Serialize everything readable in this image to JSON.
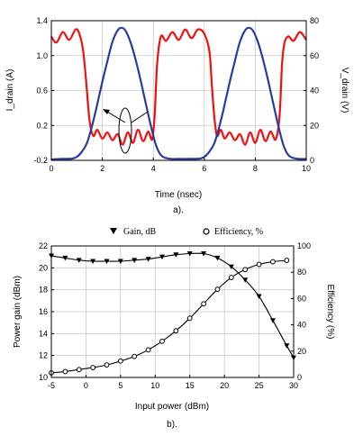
{
  "chart_data": [
    {
      "id": "a",
      "type": "line",
      "caption": "a).",
      "xlabel": "Time (nsec)",
      "ylabel_left": "I_drain (A)",
      "ylabel_right": "V_drain (V)",
      "xlim": [
        0,
        10
      ],
      "ylim_left": [
        -0.2,
        1.4
      ],
      "ylim_right": [
        0,
        80
      ],
      "xticks": [
        "0",
        "2",
        "4",
        "6",
        "8",
        "10"
      ],
      "yticks_left": [
        "-0.2",
        "0.2",
        "0.6",
        "1.0",
        "1.4"
      ],
      "yticks_right": [
        "0",
        "20",
        "40",
        "60",
        "80"
      ],
      "grid": true,
      "colors": {
        "current": "#ee1111",
        "voltage": "#2a3c9c"
      },
      "series": [
        {
          "axis": "left",
          "x": [
            0,
            0.2,
            0.45,
            0.7,
            0.95,
            1.1,
            1.25,
            1.38,
            1.5,
            1.65,
            1.8,
            2.0,
            2.2,
            2.4,
            2.6,
            2.8,
            3.0,
            3.2,
            3.4,
            3.6,
            3.8,
            3.95,
            4.05,
            4.15,
            4.3,
            4.5,
            4.75,
            5.0,
            5.25,
            5.5,
            5.75,
            6.0,
            6.2,
            6.3,
            6.4,
            6.5,
            6.65,
            6.8,
            7.0,
            7.2,
            7.4,
            7.6,
            7.8,
            8.0,
            8.2,
            8.4,
            8.6,
            8.8,
            8.95,
            9.05,
            9.15,
            9.3,
            9.5,
            9.75,
            10.0
          ],
          "y": [
            1.22,
            1.15,
            1.27,
            1.18,
            1.3,
            1.25,
            1.05,
            0.65,
            0.25,
            0.08,
            0.15,
            0.05,
            0.12,
            0.03,
            0.1,
            -0.02,
            0.12,
            0.0,
            0.15,
            0.02,
            0.13,
            0.04,
            0.3,
            0.9,
            1.22,
            1.17,
            1.27,
            1.18,
            1.3,
            1.2,
            1.3,
            1.25,
            1.05,
            0.65,
            0.28,
            0.08,
            0.15,
            0.05,
            0.12,
            0.03,
            0.1,
            -0.02,
            0.12,
            0.0,
            0.15,
            0.02,
            0.13,
            0.04,
            0.3,
            0.9,
            1.15,
            1.22,
            1.17,
            1.27,
            1.18
          ]
        },
        {
          "axis": "right",
          "x": [
            0,
            0.4,
            0.8,
            1.0,
            1.2,
            1.4,
            1.6,
            1.8,
            2.0,
            2.2,
            2.4,
            2.6,
            2.75,
            2.9,
            3.1,
            3.3,
            3.5,
            3.7,
            3.9,
            4.1,
            4.3,
            4.6,
            5.0,
            5.4,
            5.8,
            6.0,
            6.2,
            6.4,
            6.6,
            6.8,
            7.0,
            7.2,
            7.4,
            7.6,
            7.75,
            7.9,
            8.1,
            8.3,
            8.5,
            8.7,
            8.9,
            9.1,
            9.3,
            9.6,
            10.0
          ],
          "y": [
            0.5,
            0.8,
            1.0,
            2.0,
            5.0,
            10.0,
            20.0,
            32.0,
            45.0,
            57.0,
            68.0,
            74.5,
            76.0,
            74.5,
            68.0,
            58.0,
            46.0,
            33.0,
            20.0,
            9.0,
            3.0,
            1.0,
            0.8,
            0.8,
            1.0,
            2.0,
            5.0,
            10.0,
            20.0,
            32.0,
            45.0,
            57.0,
            68.0,
            74.5,
            76.0,
            74.5,
            68.0,
            58.0,
            46.0,
            33.0,
            20.0,
            9.0,
            3.0,
            1.0,
            0.8
          ]
        }
      ]
    },
    {
      "id": "b",
      "type": "line",
      "caption": "b).",
      "xlabel": "Input power (dBm)",
      "ylabel_left": "Power gain (dBm)",
      "ylabel_right": "Efficiency (%)",
      "xlim": [
        -5,
        30
      ],
      "ylim_left": [
        10,
        22
      ],
      "ylim_right": [
        0,
        100
      ],
      "xticks": [
        "-5",
        "0",
        "5",
        "10",
        "15",
        "20",
        "25",
        "30"
      ],
      "yticks_left": [
        "10",
        "12",
        "14",
        "16",
        "18",
        "20",
        "22"
      ],
      "yticks_right": [
        "0",
        "20",
        "40",
        "60",
        "80",
        "100"
      ],
      "grid": true,
      "legend_position": "top",
      "legend": [
        {
          "marker": "triangle-down",
          "label": "Gain, dB"
        },
        {
          "marker": "circle",
          "label": "Efficiency, %"
        }
      ],
      "series": [
        {
          "name": "Gain, dB",
          "axis": "left",
          "marker": "triangle-down",
          "x": [
            -5,
            -3,
            -1,
            1,
            3,
            5,
            7,
            9,
            11,
            13,
            15,
            17,
            19,
            21,
            23,
            25,
            27,
            29,
            30
          ],
          "y": [
            21.1,
            20.9,
            20.7,
            20.6,
            20.6,
            20.6,
            20.7,
            20.8,
            21.0,
            21.2,
            21.3,
            21.3,
            20.9,
            20.1,
            18.9,
            17.4,
            15.2,
            12.9,
            11.8
          ]
        },
        {
          "name": "Efficiency, %",
          "axis": "right",
          "marker": "circle",
          "x": [
            -5,
            -3,
            -1,
            1,
            3,
            5,
            7,
            9,
            11,
            13,
            15,
            17,
            19,
            21,
            23,
            25,
            27,
            29
          ],
          "y": [
            3.5,
            4.5,
            6.0,
            7.5,
            9.5,
            12.5,
            16.0,
            21.0,
            27.5,
            35.5,
            45.0,
            56.0,
            67.0,
            76.0,
            82.0,
            86.0,
            88.0,
            89.0
          ]
        }
      ]
    }
  ]
}
